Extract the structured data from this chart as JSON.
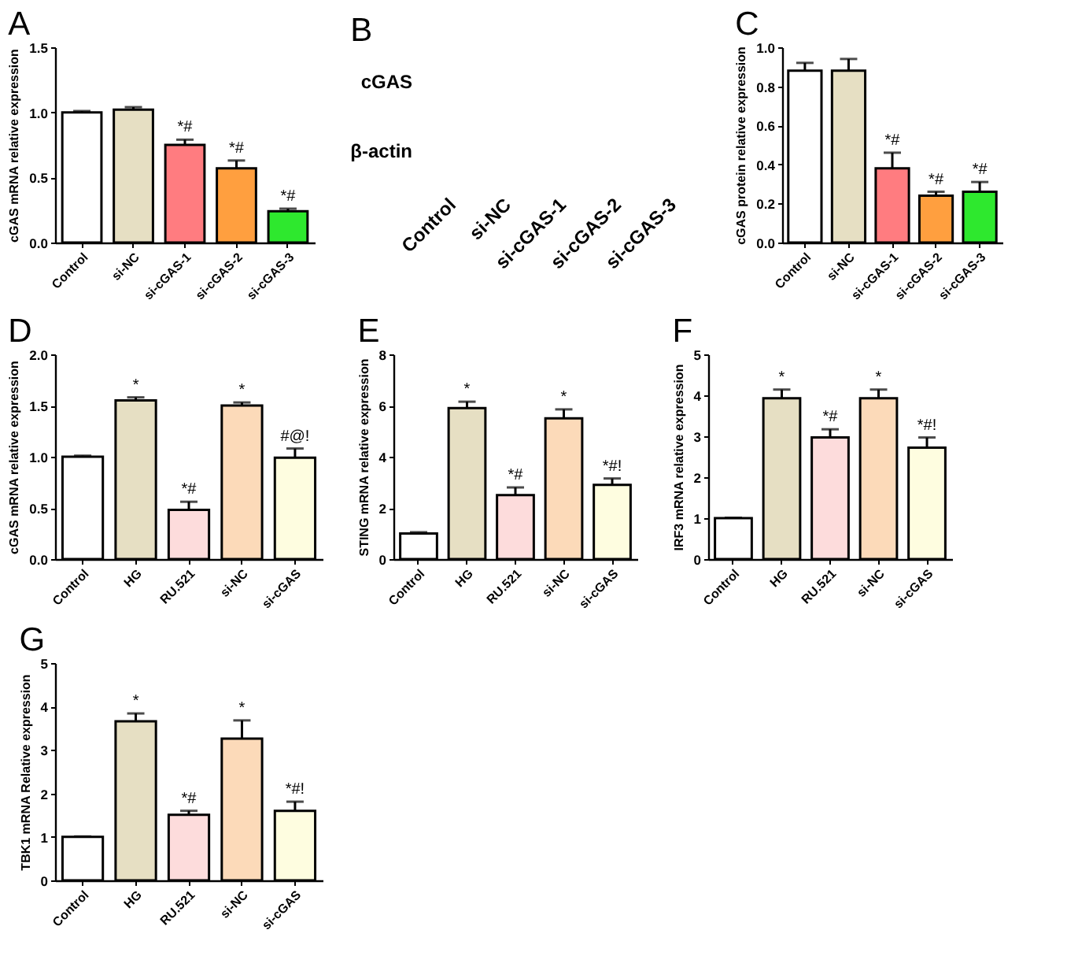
{
  "chart_data": [
    {
      "type": "bar",
      "title": "A",
      "ylabel": "cGAS mRNA relative expression",
      "categories": [
        "Control",
        "si-NC",
        "si-cGAS-1",
        "si-cGAS-2",
        "si-cGAS-3"
      ],
      "values": [
        1.0,
        1.02,
        0.75,
        0.57,
        0.24
      ],
      "colors": [
        "#ffffff",
        "#e6dfc3",
        "#ff7c80",
        "#ff9f3f",
        "#2ee82e"
      ],
      "errors": [
        [
          1.0,
          1.01
        ],
        [
          1.02,
          1.04
        ],
        [
          0.75,
          0.79
        ],
        [
          0.57,
          0.63
        ],
        [
          0.24,
          0.26
        ]
      ],
      "ylim": [
        0,
        1.5
      ],
      "yticks": [
        {
          "value": 0,
          "label": "0.0"
        },
        {
          "value": 0.5,
          "label": "0.5"
        },
        {
          "value": 1,
          "label": "1.0"
        },
        {
          "value": 1.5,
          "label": "1.5"
        }
      ],
      "annotations": [
        "*#",
        "*#",
        "*#"
      ]
    },
    {
      "type": "other",
      "title": "B",
      "categories": [
        "Control",
        "si-NC",
        "si-cGAS-1",
        "si-cGAS-2",
        "si-cGAS-3"
      ],
      "y_categories": [
        "cGAS",
        "β-actin"
      ]
    },
    {
      "type": "bar",
      "title": "C",
      "ylabel": "cGAS protein relative expression",
      "categories": [
        "Control",
        "si-NC",
        "si-cGAS-1",
        "si-cGAS-2",
        "si-cGAS-3"
      ],
      "values": [
        0.88,
        0.88,
        0.38,
        0.24,
        0.26
      ],
      "colors": [
        "#ffffff",
        "#e6dfc3",
        "#ff7c80",
        "#ff9f3f",
        "#2ee82e"
      ],
      "errors": [
        [
          0.88,
          0.92
        ],
        [
          0.88,
          0.94
        ],
        [
          0.38,
          0.46
        ],
        [
          0.24,
          0.26
        ],
        [
          0.26,
          0.31
        ]
      ],
      "ylim": [
        0,
        1.0
      ],
      "yticks": [
        {
          "value": 0,
          "label": "0.0"
        },
        {
          "value": 0.2,
          "label": "0.2"
        },
        {
          "value": 0.4,
          "label": "0.4"
        },
        {
          "value": 0.6,
          "label": "0.6"
        },
        {
          "value": 0.8,
          "label": "0.8"
        },
        {
          "value": 1,
          "label": "1.0"
        }
      ],
      "annotations": [
        "*#",
        "*#",
        "*#"
      ]
    },
    {
      "type": "bar",
      "title": "D",
      "ylabel": "cGAS mRNA relative expression",
      "categories": [
        "Control",
        "HG",
        "RU.521",
        "si-NC",
        "si-cGAS"
      ],
      "values": [
        1.0,
        1.55,
        0.48,
        1.5,
        0.99
      ],
      "colors": [
        "#ffffff",
        "#e6dfc3",
        "#fddcdc",
        "#fcdab9",
        "#fefde0"
      ],
      "errors": [
        [
          1.0,
          1.01
        ],
        [
          1.55,
          1.58
        ],
        [
          0.48,
          0.56
        ],
        [
          1.5,
          1.53
        ],
        [
          0.99,
          1.08
        ]
      ],
      "ylim": [
        0,
        2.0
      ],
      "yticks": [
        {
          "value": 0,
          "label": "0.0"
        },
        {
          "value": 0.5,
          "label": "0.5"
        },
        {
          "value": 1,
          "label": "1.0"
        },
        {
          "value": 1.5,
          "label": "1.5"
        },
        {
          "value": 2,
          "label": "2.0"
        }
      ],
      "annotations": [
        "*",
        "*#",
        "*",
        "#@!"
      ]
    },
    {
      "type": "bar",
      "title": "E",
      "ylabel": "STING mRNA relative expression",
      "categories": [
        "Control",
        "HG",
        "RU.521",
        "si-NC",
        "si-cGAS"
      ],
      "values": [
        1.0,
        5.9,
        2.5,
        5.5,
        2.9
      ],
      "colors": [
        "#ffffff",
        "#e6dfc3",
        "#fddcdc",
        "#fcdab9",
        "#fefde0"
      ],
      "errors": [
        [
          1.0,
          1.05
        ],
        [
          5.9,
          6.15
        ],
        [
          2.5,
          2.8
        ],
        [
          5.5,
          5.85
        ],
        [
          2.9,
          3.15
        ]
      ],
      "ylim": [
        0,
        8
      ],
      "yticks": [
        0,
        2,
        4,
        6,
        8
      ],
      "annotations": [
        "*",
        "*#",
        "*",
        "*#!"
      ]
    },
    {
      "type": "bar",
      "title": "F",
      "ylabel": "IRF3 mRNA relative expression",
      "categories": [
        "Control",
        "HG",
        "RU.521",
        "si-NC",
        "si-cGAS"
      ],
      "values": [
        1.0,
        3.93,
        2.97,
        3.93,
        2.72
      ],
      "colors": [
        "#ffffff",
        "#e6dfc3",
        "#fddcdc",
        "#fcdab9",
        "#fefde0"
      ],
      "errors": [
        [
          1.0,
          1.01
        ],
        [
          3.93,
          4.14
        ],
        [
          2.97,
          3.17
        ],
        [
          3.93,
          4.14
        ],
        [
          2.72,
          2.97
        ]
      ],
      "ylim": [
        0,
        5
      ],
      "yticks": [
        0,
        1,
        2,
        3,
        4,
        5
      ],
      "annotations": [
        "*",
        "*#",
        "*",
        "*#!"
      ]
    },
    {
      "type": "bar",
      "title": "G",
      "ylabel": "TBK1 mRNA Relative expression",
      "categories": [
        "Control",
        "HG",
        "RU.521",
        "si-NC",
        "si-cGAS"
      ],
      "values": [
        1.0,
        3.66,
        1.51,
        3.26,
        1.6
      ],
      "colors": [
        "#ffffff",
        "#e6dfc3",
        "#fddcdc",
        "#fcdab9",
        "#fefde0"
      ],
      "errors": [
        [
          1.0,
          1.01
        ],
        [
          3.66,
          3.84
        ],
        [
          1.51,
          1.6
        ],
        [
          3.26,
          3.68
        ],
        [
          1.6,
          1.81
        ]
      ],
      "ylim": [
        0,
        5
      ],
      "yticks": [
        0,
        1,
        2,
        3,
        4,
        5
      ],
      "annotations": [
        "*",
        "*#",
        "*",
        "*#!"
      ]
    }
  ]
}
